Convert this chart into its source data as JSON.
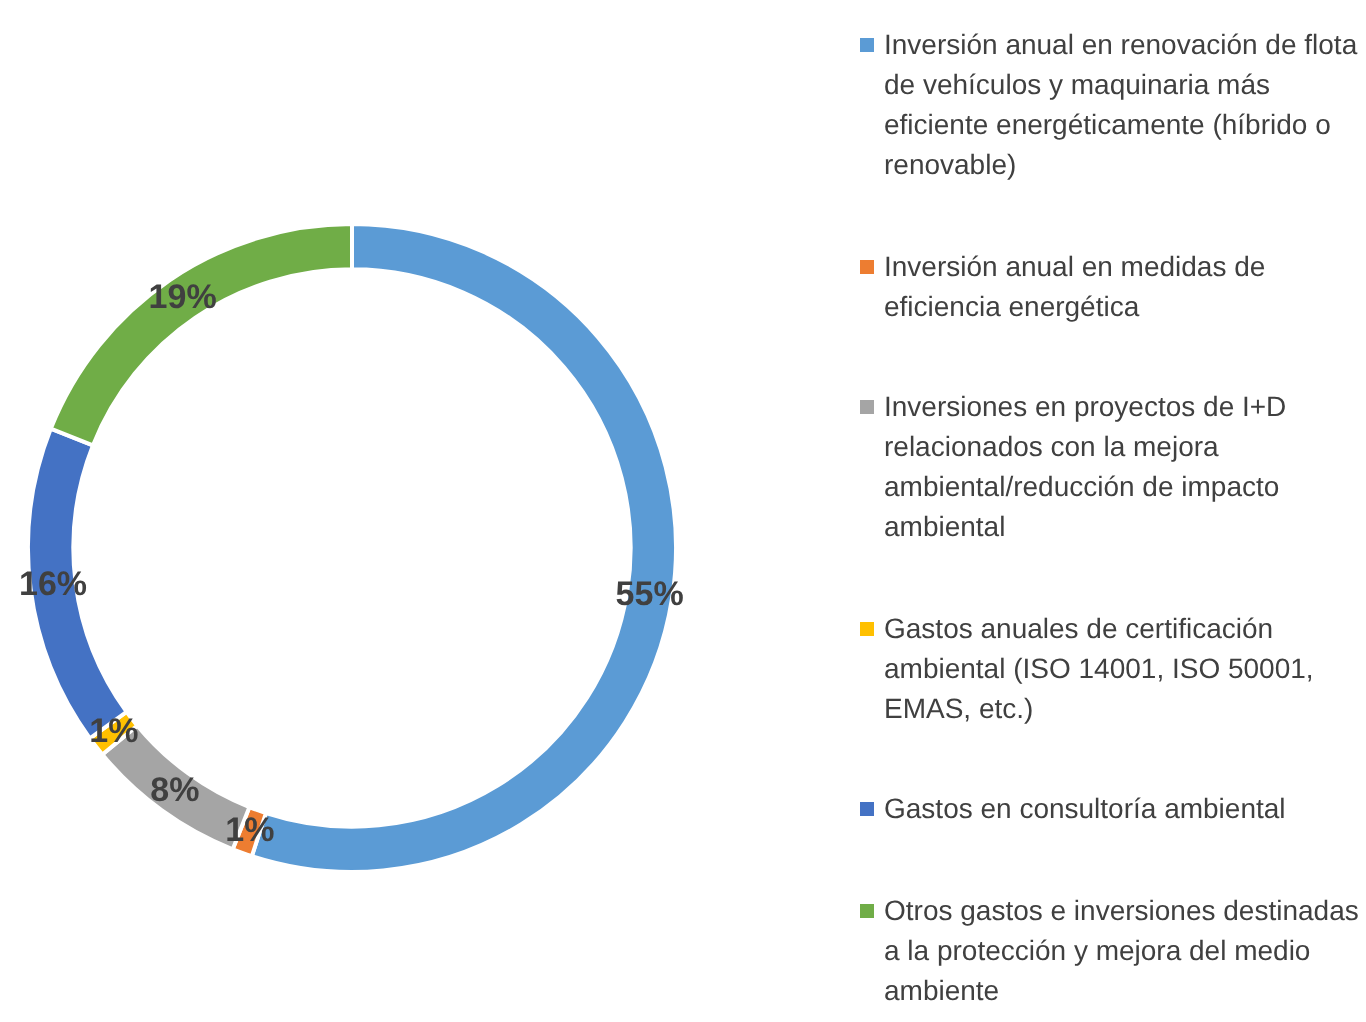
{
  "chart_data": {
    "type": "donut",
    "categories": [
      "Inversión anual en renovación de flota de vehículos y maquinaria más eficiente energéticamente (híbrido o renovable)",
      "Inversión anual en medidas de eficiencia energética",
      "Inversiones en proyectos de I+D relacionados con la mejora ambiental/reducción de impacto ambiental",
      "Gastos anuales de certificación ambiental (ISO 14001, ISO 50001, EMAS, etc.)",
      "Gastos en consultoría ambiental",
      "Otros gastos e inversiones destinadas a la protección y mejora del medio ambiente"
    ],
    "values": [
      55,
      1,
      8,
      1,
      16,
      19
    ],
    "colors": [
      "#5b9bd5",
      "#ed7d31",
      "#a5a5a5",
      "#ffc000",
      "#4472c4",
      "#70ad47"
    ],
    "value_labels": [
      "55%",
      "1%",
      "8%",
      "1%",
      "16%",
      "19%"
    ],
    "legend": "right"
  }
}
